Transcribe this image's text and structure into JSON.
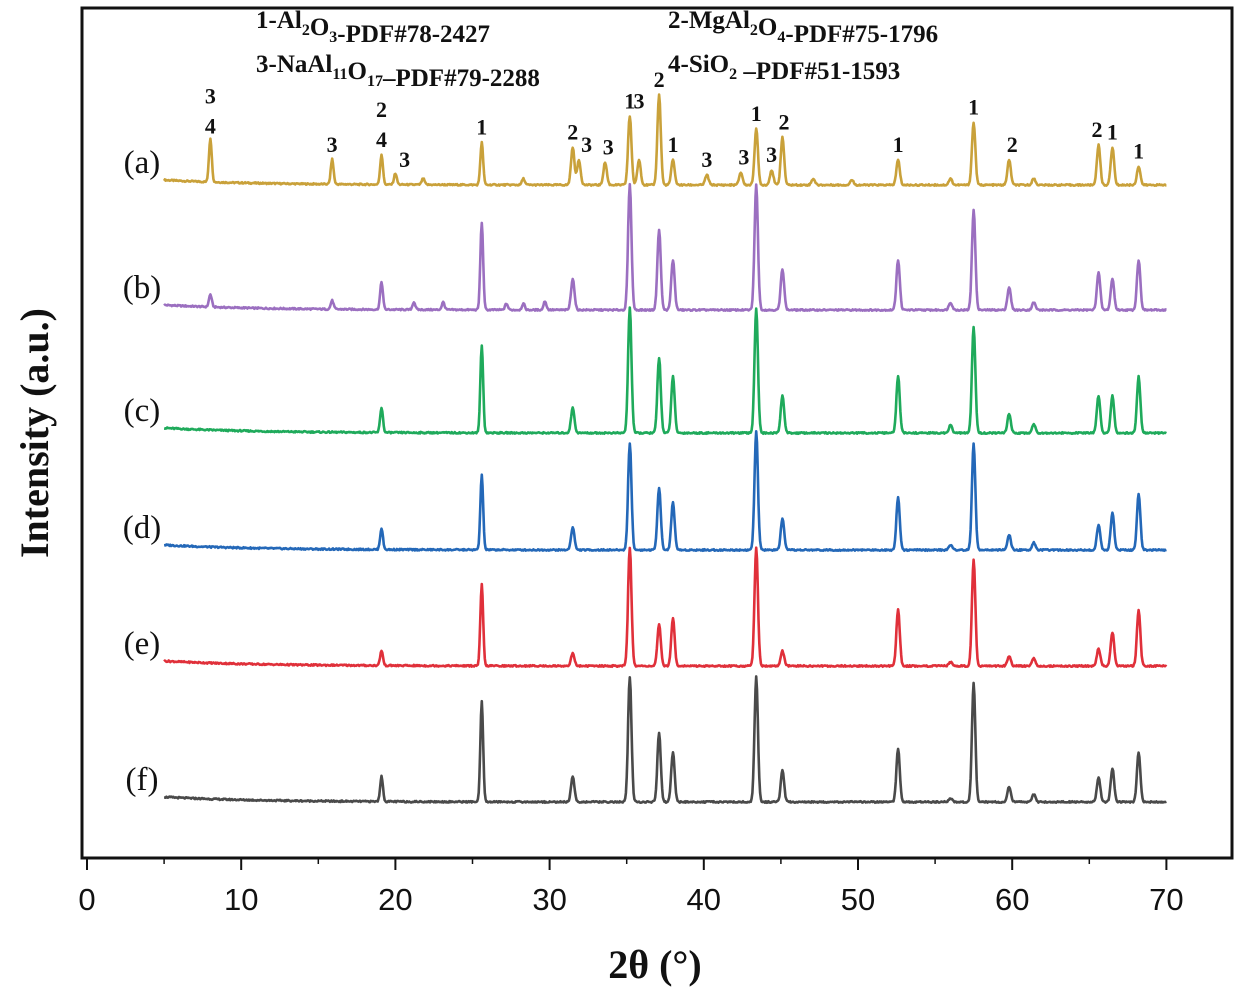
{
  "chart_data": {
    "type": "line",
    "xlabel": "2θ (°)",
    "ylabel": "Intensity (a.u.)",
    "xlim": [
      0,
      75
    ],
    "xticks": [
      0,
      10,
      20,
      30,
      40,
      50,
      60,
      70
    ],
    "x_range": [
      5,
      70
    ],
    "legend": [
      {
        "id": "1",
        "compound": "Al2O3",
        "pdf": "PDF#78-2427",
        "parts": [
          [
            "1-Al",
            ""
          ],
          [
            "2",
            "sub"
          ],
          [
            "O",
            ""
          ],
          [
            "3",
            "sub"
          ],
          [
            "-PDF#78-2427",
            ""
          ]
        ]
      },
      {
        "id": "2",
        "compound": "MgAl2O4",
        "pdf": "PDF#75-1796",
        "parts": [
          [
            "2-MgAl",
            ""
          ],
          [
            "2",
            "sub"
          ],
          [
            "O",
            ""
          ],
          [
            "4",
            "sub"
          ],
          [
            "-PDF#75-1796",
            ""
          ]
        ]
      },
      {
        "id": "3",
        "compound": "NaAl11O17",
        "pdf": "PDF#79-2288",
        "parts": [
          [
            "3-NaAl",
            ""
          ],
          [
            "11",
            "sub"
          ],
          [
            "O",
            ""
          ],
          [
            "17",
            "sub"
          ],
          [
            "–PDF#79-2288",
            ""
          ]
        ]
      },
      {
        "id": "4",
        "compound": "SiO2",
        "pdf": "PDF#51-1593",
        "parts": [
          [
            "4-SiO",
            ""
          ],
          [
            "2",
            "sub"
          ],
          [
            " –PDF#51-1593",
            ""
          ]
        ]
      }
    ],
    "peak_annotations": [
      {
        "x": 8.0,
        "labels": [
          "3",
          "4"
        ]
      },
      {
        "x": 15.9,
        "labels": [
          "3"
        ]
      },
      {
        "x": 19.1,
        "labels": [
          "2",
          "4"
        ]
      },
      {
        "x": 20.6,
        "labels": [
          "3"
        ]
      },
      {
        "x": 25.6,
        "labels": [
          "1"
        ]
      },
      {
        "x": 31.5,
        "labels": [
          "2"
        ]
      },
      {
        "x": 32.4,
        "labels": [
          "3"
        ]
      },
      {
        "x": 33.8,
        "labels": [
          "3"
        ]
      },
      {
        "x": 35.2,
        "labels": [
          "1"
        ]
      },
      {
        "x": 35.8,
        "labels": [
          "3"
        ]
      },
      {
        "x": 37.1,
        "labels": [
          "2"
        ]
      },
      {
        "x": 38.0,
        "labels": [
          "1"
        ]
      },
      {
        "x": 40.2,
        "labels": [
          "3"
        ]
      },
      {
        "x": 42.6,
        "labels": [
          "3"
        ]
      },
      {
        "x": 43.4,
        "labels": [
          "1"
        ]
      },
      {
        "x": 44.4,
        "labels": [
          "3"
        ]
      },
      {
        "x": 45.2,
        "labels": [
          "2"
        ]
      },
      {
        "x": 52.6,
        "labels": [
          "1"
        ]
      },
      {
        "x": 57.5,
        "labels": [
          "1"
        ]
      },
      {
        "x": 60.0,
        "labels": [
          "2"
        ]
      },
      {
        "x": 65.5,
        "labels": [
          "2"
        ]
      },
      {
        "x": 66.5,
        "labels": [
          "1"
        ]
      },
      {
        "x": 68.2,
        "labels": [
          "1"
        ]
      }
    ],
    "series": [
      {
        "name": "(a)",
        "color": "#c9a13a",
        "peaks": [
          [
            8.0,
            0.35
          ],
          [
            15.9,
            0.2
          ],
          [
            19.1,
            0.24
          ],
          [
            20.0,
            0.09
          ],
          [
            21.8,
            0.05
          ],
          [
            25.6,
            0.34
          ],
          [
            28.3,
            0.05
          ],
          [
            31.5,
            0.3
          ],
          [
            31.9,
            0.2
          ],
          [
            33.6,
            0.18
          ],
          [
            35.2,
            0.55
          ],
          [
            35.8,
            0.2
          ],
          [
            37.1,
            0.72
          ],
          [
            38.0,
            0.2
          ],
          [
            40.2,
            0.08
          ],
          [
            42.4,
            0.1
          ],
          [
            43.4,
            0.45
          ],
          [
            44.4,
            0.12
          ],
          [
            45.1,
            0.38
          ],
          [
            47.1,
            0.05
          ],
          [
            49.6,
            0.04
          ],
          [
            52.6,
            0.2
          ],
          [
            56.0,
            0.05
          ],
          [
            57.5,
            0.5
          ],
          [
            59.8,
            0.2
          ],
          [
            61.4,
            0.05
          ],
          [
            65.6,
            0.32
          ],
          [
            66.5,
            0.3
          ],
          [
            68.2,
            0.15
          ]
        ]
      },
      {
        "name": "(b)",
        "color": "#9b6fc0",
        "peaks": [
          [
            8.0,
            0.1
          ],
          [
            15.9,
            0.07
          ],
          [
            19.1,
            0.22
          ],
          [
            21.2,
            0.06
          ],
          [
            23.1,
            0.06
          ],
          [
            25.6,
            0.7
          ],
          [
            27.2,
            0.05
          ],
          [
            28.3,
            0.05
          ],
          [
            29.7,
            0.07
          ],
          [
            31.5,
            0.25
          ],
          [
            35.2,
            1.0
          ],
          [
            37.1,
            0.64
          ],
          [
            38.0,
            0.4
          ],
          [
            43.4,
            1.0
          ],
          [
            45.1,
            0.33
          ],
          [
            52.6,
            0.4
          ],
          [
            56.0,
            0.06
          ],
          [
            57.5,
            0.8
          ],
          [
            59.8,
            0.18
          ],
          [
            61.4,
            0.06
          ],
          [
            65.6,
            0.3
          ],
          [
            66.5,
            0.25
          ],
          [
            68.2,
            0.4
          ]
        ]
      },
      {
        "name": "(c)",
        "color": "#1faa5b",
        "peaks": [
          [
            19.1,
            0.2
          ],
          [
            25.6,
            0.7
          ],
          [
            31.5,
            0.2
          ],
          [
            35.2,
            1.0
          ],
          [
            37.1,
            0.6
          ],
          [
            38.0,
            0.45
          ],
          [
            43.4,
            1.0
          ],
          [
            45.1,
            0.3
          ],
          [
            52.6,
            0.45
          ],
          [
            56.0,
            0.06
          ],
          [
            57.5,
            0.85
          ],
          [
            59.8,
            0.15
          ],
          [
            61.4,
            0.07
          ],
          [
            65.6,
            0.3
          ],
          [
            66.5,
            0.3
          ],
          [
            68.2,
            0.45
          ]
        ]
      },
      {
        "name": "(d)",
        "color": "#2468b8",
        "peaks": [
          [
            19.1,
            0.17
          ],
          [
            25.6,
            0.6
          ],
          [
            31.5,
            0.18
          ],
          [
            35.2,
            0.85
          ],
          [
            37.1,
            0.5
          ],
          [
            38.0,
            0.38
          ],
          [
            43.4,
            0.95
          ],
          [
            45.1,
            0.25
          ],
          [
            52.6,
            0.42
          ],
          [
            56.0,
            0.04
          ],
          [
            57.5,
            0.85
          ],
          [
            59.8,
            0.12
          ],
          [
            61.4,
            0.06
          ],
          [
            65.6,
            0.2
          ],
          [
            66.5,
            0.3
          ],
          [
            68.2,
            0.45
          ]
        ]
      },
      {
        "name": "(e)",
        "color": "#e0303a",
        "peaks": [
          [
            19.1,
            0.12
          ],
          [
            25.6,
            0.65
          ],
          [
            31.5,
            0.1
          ],
          [
            35.2,
            0.95
          ],
          [
            37.1,
            0.33
          ],
          [
            38.0,
            0.38
          ],
          [
            43.4,
            0.95
          ],
          [
            45.1,
            0.12
          ],
          [
            52.6,
            0.45
          ],
          [
            56.0,
            0.03
          ],
          [
            57.5,
            0.85
          ],
          [
            59.8,
            0.08
          ],
          [
            61.4,
            0.06
          ],
          [
            65.6,
            0.14
          ],
          [
            66.5,
            0.27
          ],
          [
            68.2,
            0.45
          ]
        ]
      },
      {
        "name": "(f)",
        "color": "#4a4a4a",
        "peaks": [
          [
            19.1,
            0.2
          ],
          [
            25.6,
            0.8
          ],
          [
            31.5,
            0.2
          ],
          [
            35.2,
            1.0
          ],
          [
            37.1,
            0.55
          ],
          [
            38.0,
            0.4
          ],
          [
            43.4,
            1.0
          ],
          [
            45.1,
            0.25
          ],
          [
            52.6,
            0.43
          ],
          [
            56.0,
            0.03
          ],
          [
            57.5,
            0.95
          ],
          [
            59.8,
            0.12
          ],
          [
            61.4,
            0.06
          ],
          [
            65.6,
            0.2
          ],
          [
            66.5,
            0.27
          ],
          [
            68.2,
            0.4
          ]
        ]
      }
    ]
  }
}
